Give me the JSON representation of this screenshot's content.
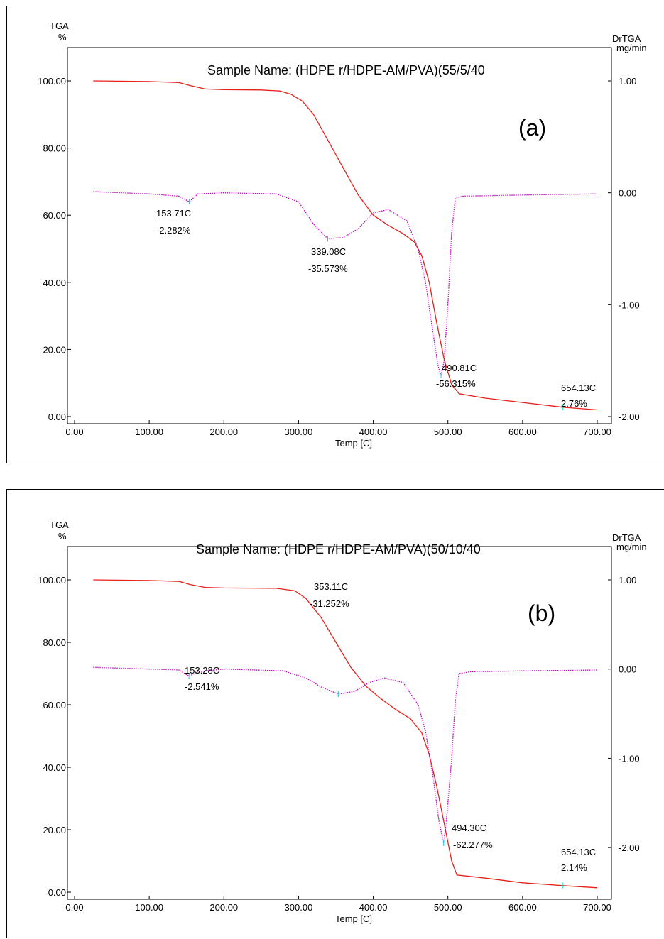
{
  "chart_data": [
    {
      "type": "line",
      "panel_label": "(a)",
      "title": "Sample Name:  (HDPE r/HDPE-AM/PVA)(55/5/40",
      "xlabel": "Temp   [C]",
      "ylabel": [
        "TGA",
        "%"
      ],
      "y2label": [
        "DrTGA",
        "mg/min"
      ],
      "xlim": [
        0,
        700
      ],
      "ylim": [
        0,
        100
      ],
      "y2lim": [
        -2.0,
        1.0
      ],
      "x_ticks": [
        "0.00",
        "100.00",
        "200.00",
        "300.00",
        "400.00",
        "500.00",
        "600.00",
        "700.00"
      ],
      "y_ticks": [
        "0.00",
        "20.00",
        "40.00",
        "60.00",
        "80.00",
        "100.00"
      ],
      "y2_ticks": [
        "-2.00",
        "-1.00",
        "0.00",
        "1.00"
      ],
      "series": [
        {
          "axis": "left",
          "color": "#e8201a",
          "style": "solid",
          "points": [
            [
              25,
              100
            ],
            [
              100,
              99.8
            ],
            [
              140,
              99.5
            ],
            [
              155,
              98.6
            ],
            [
              175,
              97.6
            ],
            [
              200,
              97.4
            ],
            [
              250,
              97.3
            ],
            [
              275,
              97.0
            ],
            [
              290,
              96.0
            ],
            [
              305,
              94.0
            ],
            [
              320,
              90.0
            ],
            [
              340,
              82.0
            ],
            [
              360,
              74.0
            ],
            [
              380,
              66.0
            ],
            [
              400,
              60.0
            ],
            [
              420,
              57.0
            ],
            [
              440,
              54.5
            ],
            [
              455,
              52.0
            ],
            [
              465,
              48.0
            ],
            [
              475,
              40.0
            ],
            [
              485,
              28.0
            ],
            [
              495,
              17.0
            ],
            [
              505,
              9.5
            ],
            [
              515,
              6.8
            ],
            [
              550,
              5.5
            ],
            [
              600,
              4.2
            ],
            [
              654,
              2.8
            ],
            [
              700,
              2.0
            ]
          ]
        },
        {
          "axis": "right",
          "color": "#cc00cc",
          "style": "dotted",
          "points": [
            [
              25,
              0.01
            ],
            [
              100,
              -0.01
            ],
            [
              140,
              -0.03
            ],
            [
              153.7,
              -0.08
            ],
            [
              165,
              -0.01
            ],
            [
              200,
              0.0
            ],
            [
              270,
              -0.01
            ],
            [
              300,
              -0.08
            ],
            [
              320,
              -0.28
            ],
            [
              339.1,
              -0.41
            ],
            [
              360,
              -0.4
            ],
            [
              380,
              -0.32
            ],
            [
              400,
              -0.18
            ],
            [
              420,
              -0.15
            ],
            [
              445,
              -0.25
            ],
            [
              460,
              -0.5
            ],
            [
              470,
              -0.8
            ],
            [
              480,
              -1.25
            ],
            [
              487,
              -1.55
            ],
            [
              490.8,
              -1.63
            ],
            [
              495,
              -1.5
            ],
            [
              500,
              -1.0
            ],
            [
              505,
              -0.35
            ],
            [
              510,
              -0.05
            ],
            [
              520,
              -0.03
            ],
            [
              600,
              -0.02
            ],
            [
              700,
              -0.01
            ]
          ]
        }
      ],
      "annotations": [
        {
          "temp": "153.71C",
          "loss": "-2.282%",
          "x": 153.71,
          "y2": -0.08
        },
        {
          "temp": "339.08C",
          "loss": "-35.573%",
          "x": 339.08,
          "y2": -0.41
        },
        {
          "temp": "490.81C",
          "loss": "-56.315%",
          "x": 490.81,
          "y2": -1.63
        },
        {
          "temp": "654.13C",
          "loss": "2.76%",
          "x": 654.13,
          "y": 2.76
        }
      ]
    },
    {
      "type": "line",
      "panel_label": "(b)",
      "title": "Sample Name:  (HDPE r/HDPE-AM/PVA)(50/10/40",
      "xlabel": "Temp   [C]",
      "ylabel": [
        "TGA",
        "%"
      ],
      "y2label": [
        "DrTGA",
        "mg/min"
      ],
      "xlim": [
        0,
        700
      ],
      "ylim": [
        0,
        100
      ],
      "y2lim": [
        -2.5,
        1.0
      ],
      "x_ticks": [
        "0.00",
        "100.00",
        "200.00",
        "300.00",
        "400.00",
        "500.00",
        "600.00",
        "700.00"
      ],
      "y_ticks": [
        "0.00",
        "20.00",
        "40.00",
        "60.00",
        "80.00",
        "100.00"
      ],
      "y2_ticks": [
        "-2.00",
        "-1.00",
        "0.00",
        "1.00"
      ],
      "series": [
        {
          "axis": "left",
          "color": "#e8201a",
          "style": "solid",
          "points": [
            [
              25,
              100
            ],
            [
              100,
              99.8
            ],
            [
              140,
              99.5
            ],
            [
              155,
              98.5
            ],
            [
              175,
              97.6
            ],
            [
              200,
              97.4
            ],
            [
              270,
              97.3
            ],
            [
              295,
              96.5
            ],
            [
              310,
              94.0
            ],
            [
              330,
              88.0
            ],
            [
              350,
              80.0
            ],
            [
              370,
              72.0
            ],
            [
              390,
              66.0
            ],
            [
              410,
              62.0
            ],
            [
              430,
              58.5
            ],
            [
              450,
              55.5
            ],
            [
              465,
              51.0
            ],
            [
              475,
              44.0
            ],
            [
              485,
              34.0
            ],
            [
              495,
              22.0
            ],
            [
              505,
              10.0
            ],
            [
              512,
              5.5
            ],
            [
              550,
              4.5
            ],
            [
              600,
              3.0
            ],
            [
              654,
              2.1
            ],
            [
              700,
              1.4
            ]
          ]
        },
        {
          "axis": "right",
          "color": "#cc00cc",
          "style": "dotted",
          "points": [
            [
              25,
              0.02
            ],
            [
              100,
              0.0
            ],
            [
              140,
              -0.01
            ],
            [
              153.3,
              -0.08
            ],
            [
              165,
              -0.03
            ],
            [
              200,
              0.0
            ],
            [
              280,
              -0.02
            ],
            [
              310,
              -0.1
            ],
            [
              330,
              -0.2
            ],
            [
              353.1,
              -0.28
            ],
            [
              375,
              -0.25
            ],
            [
              395,
              -0.15
            ],
            [
              415,
              -0.1
            ],
            [
              440,
              -0.15
            ],
            [
              460,
              -0.4
            ],
            [
              470,
              -0.7
            ],
            [
              480,
              -1.2
            ],
            [
              488,
              -1.7
            ],
            [
              494.3,
              -1.95
            ],
            [
              498,
              -1.7
            ],
            [
              505,
              -1.0
            ],
            [
              510,
              -0.35
            ],
            [
              515,
              -0.05
            ],
            [
              530,
              -0.03
            ],
            [
              600,
              -0.02
            ],
            [
              700,
              -0.01
            ]
          ]
        }
      ],
      "annotations": [
        {
          "temp": "153.28C",
          "loss": "-2.541%",
          "x": 153.28,
          "y2": -0.08
        },
        {
          "temp": "353.11C",
          "loss": "-31.252%",
          "x": 353.11,
          "y2": -0.28
        },
        {
          "temp": "494.30C",
          "loss": "-62.277%",
          "x": 494.3,
          "y2": -1.95
        },
        {
          "temp": "654.13C",
          "loss": "2.14%",
          "x": 654.13,
          "y": 2.14
        }
      ]
    }
  ]
}
